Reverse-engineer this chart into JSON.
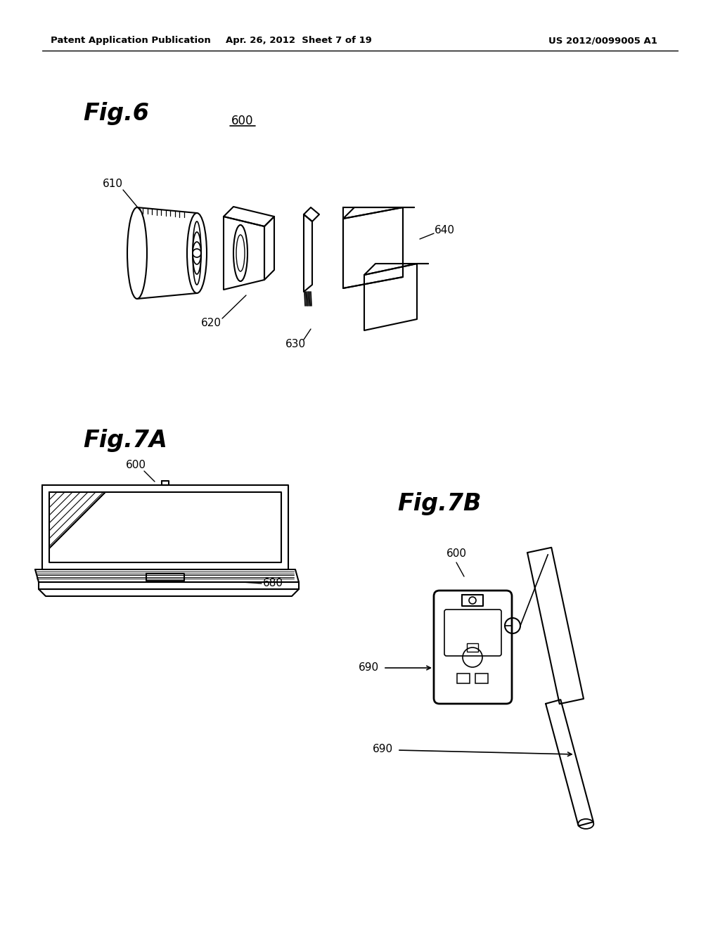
{
  "bg_color": "#ffffff",
  "header_left": "Patent Application Publication",
  "header_center": "Apr. 26, 2012  Sheet 7 of 19",
  "header_right": "US 2012/0099005 A1",
  "fig6_label": "Fig.6",
  "fig6_ref": "600",
  "label_610": "610",
  "label_620": "620",
  "label_630": "630",
  "label_640": "640",
  "fig7a_label": "Fig.7A",
  "label_600_7a": "600",
  "label_680": "680",
  "fig7b_label": "Fig.7B",
  "label_600_7b": "600",
  "label_690a": "690",
  "label_690b": "690",
  "line_color": "#000000",
  "text_color": "#000000"
}
